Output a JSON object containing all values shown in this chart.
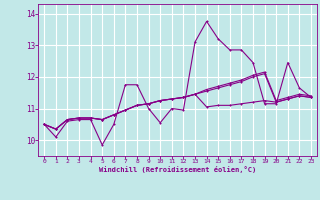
{
  "xlabel": "Windchill (Refroidissement éolien,°C)",
  "xlim": [
    -0.5,
    23.5
  ],
  "ylim": [
    9.5,
    14.3
  ],
  "yticks": [
    10,
    11,
    12,
    13,
    14
  ],
  "xticks": [
    0,
    1,
    2,
    3,
    4,
    5,
    6,
    7,
    8,
    9,
    10,
    11,
    12,
    13,
    14,
    15,
    16,
    17,
    18,
    19,
    20,
    21,
    22,
    23
  ],
  "bg_color": "#c2e8e8",
  "grid_color": "#b0dede",
  "line_color": "#880088",
  "line1": [
    10.5,
    10.1,
    10.6,
    10.65,
    10.65,
    9.85,
    10.5,
    11.75,
    11.75,
    11.0,
    10.55,
    11.0,
    10.95,
    13.1,
    13.75,
    13.2,
    12.85,
    12.85,
    12.45,
    11.15,
    11.15,
    12.45,
    11.65,
    11.35
  ],
  "line2": [
    10.5,
    10.35,
    10.65,
    10.7,
    10.7,
    10.65,
    10.8,
    10.95,
    11.1,
    11.15,
    11.25,
    11.3,
    11.35,
    11.45,
    11.6,
    11.7,
    11.8,
    11.9,
    12.05,
    12.15,
    11.25,
    11.35,
    11.45,
    11.4
  ],
  "line3": [
    10.5,
    10.35,
    10.65,
    10.7,
    10.7,
    10.65,
    10.8,
    10.95,
    11.1,
    11.15,
    11.25,
    11.3,
    11.35,
    11.45,
    11.05,
    11.1,
    11.1,
    11.15,
    11.2,
    11.25,
    11.2,
    11.3,
    11.4,
    11.35
  ],
  "line4": [
    10.5,
    10.35,
    10.65,
    10.7,
    10.7,
    10.65,
    10.8,
    10.95,
    11.1,
    11.15,
    11.25,
    11.3,
    11.35,
    11.45,
    11.55,
    11.65,
    11.75,
    11.85,
    12.0,
    12.1,
    11.2,
    11.3,
    11.4,
    11.35
  ]
}
